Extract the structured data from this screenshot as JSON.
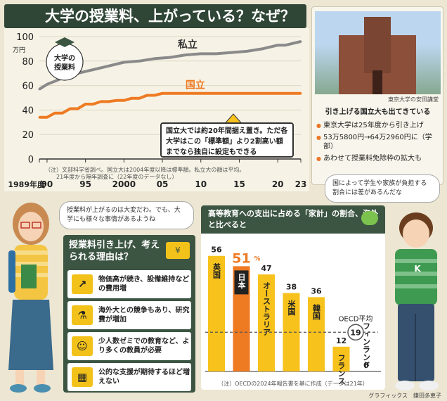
{
  "title": "大学の授業料、上がっている？なぜ？",
  "chart1": {
    "ylabel_unit": "万円",
    "badge": "大学の\n授業料",
    "note": "（注）文部科学省調べ。国立大は2004年度以降は標準額。私立大の額は平均。\n21年度から隔年調査に（22年度のデータなし）",
    "callout": "国立大では約20年間据え置き。ただ各大学はこの「標準額」より2割高い額までなら独自に設定もできる",
    "colors": {
      "private": "#8a8a8a",
      "national": "#ee7a22"
    }
  },
  "chart_data": [
    {
      "type": "line",
      "title": "",
      "xlabel": "",
      "ylabel": "万円",
      "ylim": [
        0,
        100
      ],
      "xlim": [
        1989,
        2023
      ],
      "yticks": [
        0,
        20,
        40,
        60,
        80,
        100
      ],
      "xticks": [
        {
          "x": 1989,
          "label": "1989年度"
        },
        {
          "x": 1990,
          "label": "90"
        },
        {
          "x": 1995,
          "label": "95"
        },
        {
          "x": 2000,
          "label": "2000"
        },
        {
          "x": 2005,
          "label": "05"
        },
        {
          "x": 2010,
          "label": "10"
        },
        {
          "x": 2015,
          "label": "15"
        },
        {
          "x": 2020,
          "label": "20"
        },
        {
          "x": 2023,
          "label": "23"
        }
      ],
      "grid": true,
      "series": [
        {
          "name": "私立",
          "color": "#8a8a8a",
          "x": [
            1989,
            1990,
            1992,
            1994,
            1996,
            1998,
            2000,
            2002,
            2004,
            2006,
            2008,
            2010,
            2012,
            2014,
            2016,
            2018,
            2020,
            2021,
            2023
          ],
          "values": [
            57,
            61,
            66,
            70,
            73,
            76,
            79,
            80,
            82,
            83,
            85,
            86,
            86,
            87,
            88,
            90,
            93,
            93,
            96
          ]
        },
        {
          "name": "国立",
          "color": "#ee7a22",
          "x": [
            1989,
            1990,
            1991,
            1992,
            1993,
            1994,
            1995,
            1996,
            1997,
            1998,
            1999,
            2000,
            2001,
            2002,
            2003,
            2004,
            2005,
            2023
          ],
          "values": [
            34,
            34,
            37.5,
            37.5,
            41.1,
            41.1,
            44.8,
            44.8,
            46.9,
            46.9,
            47.8,
            47.8,
            49.6,
            49.6,
            52,
            52,
            53.6,
            53.6
          ]
        }
      ]
    },
    {
      "type": "bar",
      "title": "高等教育への支出に占める「家計」の割合、海外と比べると",
      "categories": [
        "英国",
        "日本",
        "オーストラリア",
        "米国",
        "韓国",
        "フランス",
        "フィンランド"
      ],
      "values": [
        56,
        51,
        47,
        38,
        36,
        12,
        0
      ],
      "value_labels": [
        "56",
        "51",
        "47",
        "38",
        "36",
        "12",
        "0"
      ],
      "highlight": "日本",
      "unit": "%",
      "ylim": [
        0,
        60
      ],
      "reference": {
        "label": "OECD平均",
        "value": 19
      },
      "note": "（注）OECDの2024年報告書を基に作成（データは21年）"
    }
  ],
  "photo": {
    "caption": "東京大学の安田講堂",
    "heading": "引き上げる国立大も出てきている",
    "bullets": [
      "東京大学は25年度から引き上げ",
      "53万5800円→64万2960円に（学部）",
      "あわせて授業料免除枠の拡大も"
    ]
  },
  "bubbles": {
    "woman": "授業料が上がるのは大変だわ。でも、大学にも様々な事情があるようね",
    "man": "国によって学生や家族が負担する割合には差があるんだな"
  },
  "reasons": {
    "title": "授業料引き上げ、考えられる理由は？",
    "items": [
      {
        "icon": "arrow-up-icon",
        "text": "物価高が続き、設備維持などの費用増"
      },
      {
        "icon": "flask-icon",
        "text": "海外大との競争もあり、研究費が増加"
      },
      {
        "icon": "seminar-icon",
        "text": "少人数ゼミでの教育など、より多くの教員が必要"
      },
      {
        "icon": "building-icon",
        "text": "公的な支援が期待するほど増えない"
      }
    ]
  },
  "credit": "グラフィックス　鎌田多恵子"
}
